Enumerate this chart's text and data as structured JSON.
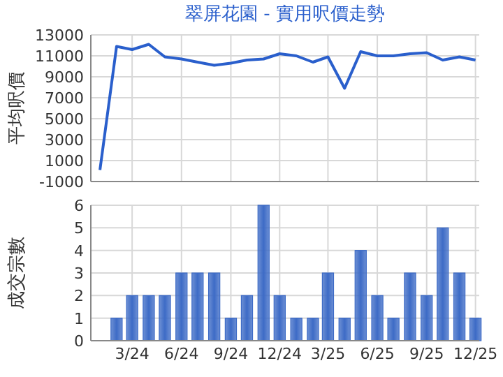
{
  "chart_data": [
    {
      "type": "line",
      "title": "翠屏花園 - 實用呎價走勢",
      "ylabel": "平均呎價",
      "color": "#2a5fcc",
      "grid": true,
      "tick_labels": "y",
      "x": [
        "2024-01",
        "2024-02",
        "2024-03",
        "2024-04",
        "2024-05",
        "2024-06",
        "2024-07",
        "2024-08",
        "2024-09",
        "2024-10",
        "2024-11",
        "2024-12",
        "2025-01",
        "2025-02",
        "2025-03",
        "2025-04",
        "2025-05",
        "2025-06",
        "2025-07",
        "2025-08",
        "2025-09",
        "2025-10",
        "2025-11",
        "2025-12"
      ],
      "values": [
        100,
        11900,
        11600,
        12100,
        10900,
        10700,
        10400,
        10100,
        10300,
        10600,
        10700,
        11200,
        11000,
        10400,
        10900,
        7900,
        11400,
        11000,
        11000,
        11200,
        11300,
        10600,
        10900,
        10600
      ],
      "xlim": [
        "2023-12-15",
        "2025-12-08"
      ],
      "xticks": [
        {
          "value": "2024-03",
          "label": null
        },
        {
          "value": "2024-06",
          "label": null
        },
        {
          "value": "2024-09",
          "label": null
        },
        {
          "value": "2024-12",
          "label": null
        },
        {
          "value": "2025-03",
          "label": null
        },
        {
          "value": "2025-06",
          "label": null
        },
        {
          "value": "2025-09",
          "label": null
        },
        {
          "value": "2025-12",
          "label": null
        }
      ],
      "ylim": [
        -1000,
        13000
      ],
      "yticks": [
        -1000,
        1000,
        3000,
        5000,
        7000,
        9000,
        11000,
        13000
      ]
    },
    {
      "type": "bar",
      "ylabel": "成交宗數",
      "color": "#3d6bc6",
      "grid": true,
      "x": [
        "2024-02",
        "2024-03",
        "2024-04",
        "2024-05",
        "2024-06",
        "2024-07",
        "2024-08",
        "2024-09",
        "2024-10",
        "2024-11",
        "2024-12",
        "2025-01",
        "2025-02",
        "2025-03",
        "2025-04",
        "2025-05",
        "2025-06",
        "2025-07",
        "2025-08",
        "2025-09",
        "2025-10",
        "2025-11",
        "2025-12"
      ],
      "values": [
        1,
        2,
        2,
        2,
        3,
        3,
        3,
        1,
        2,
        6,
        2,
        1,
        1,
        3,
        1,
        4,
        2,
        1,
        3,
        2,
        5,
        3,
        1
      ],
      "xlim": [
        "2023-12-15",
        "2025-12-08"
      ],
      "xticks": [
        {
          "value": "2024-03",
          "label": "3/24"
        },
        {
          "value": "2024-06",
          "label": "6/24"
        },
        {
          "value": "2024-09",
          "label": "9/24"
        },
        {
          "value": "2024-12",
          "label": "12/24"
        },
        {
          "value": "2025-03",
          "label": "3/25"
        },
        {
          "value": "2025-06",
          "label": "6/25"
        },
        {
          "value": "2025-09",
          "label": "9/25"
        },
        {
          "value": "2025-12",
          "label": "12/25"
        }
      ],
      "ylim": [
        0,
        6
      ],
      "yticks": [
        0,
        1,
        2,
        3,
        4,
        5,
        6
      ]
    }
  ]
}
